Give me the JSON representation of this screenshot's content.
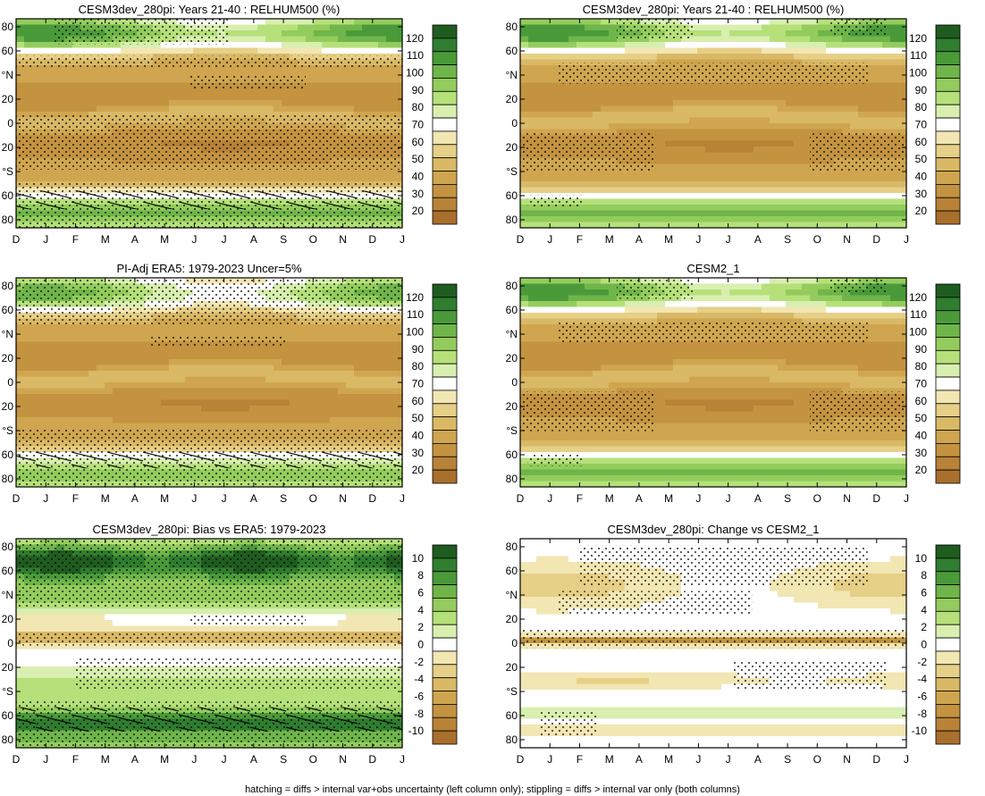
{
  "footer": "hatching = diffs > internal var+obs uncertainty (left column only); stippling = diffs > internal var only (both columns)",
  "scales": {
    "abs": {
      "labels": [
        "120",
        "110",
        "100",
        "90",
        "80",
        "70",
        "60",
        "50",
        "40",
        "30",
        "20"
      ],
      "colors": [
        "#1f5c1f",
        "#2f7d2f",
        "#4a9a3a",
        "#6fb54a",
        "#93cc5c",
        "#b6e07a",
        "#d8efb0",
        "#ffffff",
        "#f2e6b3",
        "#e6cf86",
        "#d9b866",
        "#cfa64f",
        "#c4933f",
        "#b88237",
        "#a86f2d"
      ]
    },
    "diff": {
      "labels": [
        "10",
        "8",
        "6",
        "4",
        "2",
        "0",
        "-2",
        "-4",
        "-6",
        "-8",
        "-10"
      ],
      "colors": [
        "#1f5c1f",
        "#2f7d2f",
        "#4a9a3a",
        "#6fb54a",
        "#93cc5c",
        "#b6e07a",
        "#d8efb0",
        "#ffffff",
        "#f2e6b3",
        "#e6cf86",
        "#d9b866",
        "#cfa64f",
        "#c4933f",
        "#b88237",
        "#a86f2d"
      ]
    }
  },
  "panels": [
    {
      "title": "CESM3dev_280pi: Years 21-40 : RELHUM500 (%)",
      "scale": "abs",
      "kind": "abs",
      "hatch": true,
      "stipple": "model"
    },
    {
      "title": "CESM3dev_280pi: Years 21-40 : RELHUM500 (%)",
      "scale": "abs",
      "kind": "abs",
      "hatch": false,
      "stipple": "model2"
    },
    {
      "title": "PI-Adj ERA5: 1979-2023 Uncer=5%",
      "scale": "abs",
      "kind": "obs",
      "hatch": true,
      "stipple": "obs"
    },
    {
      "title": "CESM2_1",
      "scale": "abs",
      "kind": "abs",
      "hatch": false,
      "stipple": "model2"
    },
    {
      "title": "CESM3dev_280pi: Bias vs ERA5: 1979-2023",
      "scale": "diff",
      "kind": "bias",
      "hatch": true,
      "stipple": "bias"
    },
    {
      "title": "CESM3dev_280pi: Change vs CESM2_1",
      "scale": "diff",
      "kind": "change",
      "hatch": false,
      "stipple": "change"
    }
  ],
  "chart_data": {
    "type": "heatmap",
    "x_ticks": [
      "D",
      "J",
      "F",
      "M",
      "A",
      "M",
      "J",
      "J",
      "A",
      "S",
      "O",
      "N",
      "D",
      "J"
    ],
    "y_ticks": [
      "80",
      "60",
      "°N",
      "20",
      "0",
      "20",
      "°S",
      "60",
      "80"
    ],
    "y_range": [
      -90,
      90
    ],
    "variable": "RELHUM500 (%)"
  }
}
